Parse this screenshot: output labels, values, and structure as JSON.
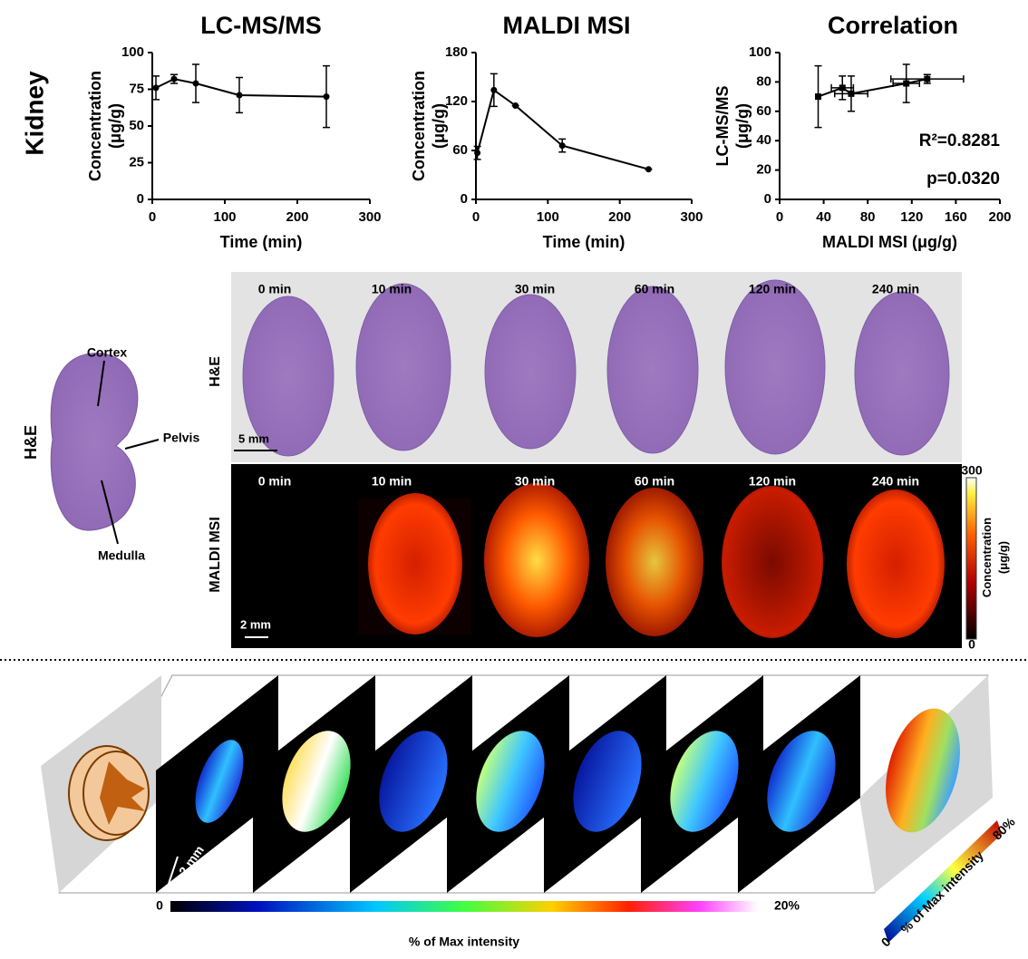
{
  "chart_data": [
    {
      "type": "line",
      "title": "LC-MS/MS",
      "x_label": "Time (min)",
      "y_label": [
        "Concentration",
        "(μg/g)"
      ],
      "x": [
        5,
        30,
        60,
        120,
        240
      ],
      "series": [
        {
          "color": "#000000",
          "values": [
            76,
            82,
            79,
            71,
            70
          ],
          "errors": [
            8,
            3,
            13,
            12,
            21
          ]
        }
      ],
      "xlim": [
        0,
        300
      ],
      "xticks": [
        0,
        100,
        200,
        300
      ],
      "ylim": [
        0,
        100
      ],
      "yticks": [
        0,
        25,
        50,
        75,
        100
      ]
    },
    {
      "type": "line",
      "title": "MALDI MSI",
      "x_label": "Time (min)",
      "y_label": [
        "Concentration",
        "(μg/g)"
      ],
      "x": [
        2,
        25,
        55,
        120,
        240
      ],
      "series": [
        {
          "color": "#000000",
          "values": [
            57,
            134,
            115,
            66,
            37
          ],
          "errors": [
            8,
            20,
            0,
            8,
            0
          ]
        }
      ],
      "xlim": [
        0,
        300
      ],
      "xticks": [
        0,
        100,
        200,
        300
      ],
      "ylim": [
        0,
        180
      ],
      "yticks": [
        0,
        60,
        120,
        180
      ]
    },
    {
      "type": "scatter",
      "title": "Correlation",
      "x_label": "MALDI MSI (μg/g)",
      "y_label": [
        "LC-MS/MS",
        "(μg/g)"
      ],
      "x": [
        35,
        57,
        65,
        115,
        134
      ],
      "x_errors": [
        0,
        10,
        15,
        12,
        33
      ],
      "series": [
        {
          "color": "#000000",
          "values": [
            70,
            76,
            72,
            79,
            82
          ],
          "errors": [
            21,
            8,
            12,
            13,
            3
          ]
        }
      ],
      "xlim": [
        0,
        200
      ],
      "xticks": [
        0,
        40,
        80,
        120,
        160,
        200
      ],
      "ylim": [
        0,
        100
      ],
      "yticks": [
        0,
        20,
        40,
        60,
        80,
        100
      ],
      "annotations": [
        "R²=0.8281",
        "p=0.0320"
      ]
    }
  ],
  "figure": {
    "side_label": "Kidney",
    "anatomy": {
      "label": "H&E",
      "cortex": "Cortex",
      "pelvis": "Pelvis",
      "medulla": "Medulla"
    },
    "he_row_label": "H&E",
    "msi_row_label": "MALDI MSI",
    "he_times": [
      "0 min",
      "10 min",
      "30 min",
      "60 min",
      "120 min",
      "240 min"
    ],
    "msi_times": [
      "0 min",
      "10 min",
      "30 min",
      "60 min",
      "120 min",
      "240 min"
    ],
    "he_scale": "5 mm",
    "msi_scale": "2 mm",
    "colorbar_ticks": [
      0,
      300
    ],
    "colorbar_label": [
      "Concentration",
      "(μg/g)"
    ],
    "bottom_scale": "2 mm",
    "bottom_bar_ticks": [
      0,
      {
        "value": 20,
        "label": "20%"
      }
    ],
    "bottom_bar_label": "% of Max intensity",
    "right_bar_ticks": [
      0,
      {
        "value": 80,
        "label": "80%"
      }
    ],
    "right_bar_label": "% of Max intensity"
  }
}
